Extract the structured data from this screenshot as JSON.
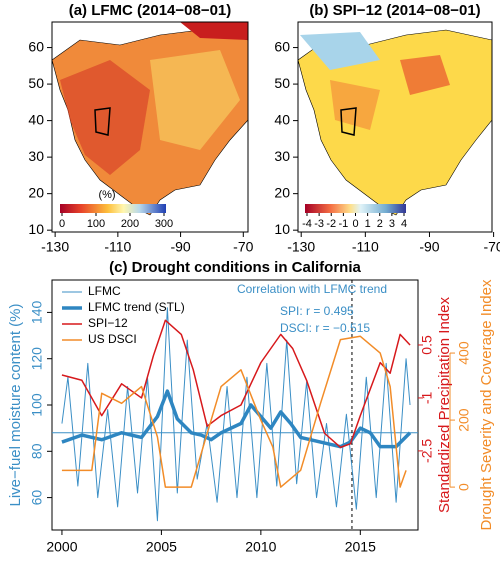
{
  "chart_data": [
    {
      "type": "map",
      "title": "(a) LFMC (2014−08−01)",
      "xlim": [
        -131,
        -68.5
      ],
      "ylim": [
        9.5,
        67
      ],
      "xticks": [
        -130,
        -110,
        -90,
        -70
      ],
      "yticks": [
        10,
        20,
        30,
        40,
        50,
        60
      ],
      "colorbar": {
        "label": "(%)",
        "lim": [
          0,
          300
        ],
        "ticks": [
          0,
          100,
          200,
          300
        ]
      }
    },
    {
      "type": "map",
      "title": "(b) SPI−12 (2014−08−01)",
      "xlim": [
        -131,
        -70.5
      ],
      "ylim": [
        9.5,
        67
      ],
      "xticks": [
        -130,
        -110,
        -90,
        -70
      ],
      "yticks": [
        10,
        20,
        30,
        40,
        50,
        60
      ],
      "colorbar": {
        "lim": [
          -4,
          4
        ],
        "ticks": [
          -4,
          -3,
          -2,
          -1,
          0,
          1,
          2,
          3,
          4
        ]
      }
    },
    {
      "type": "line",
      "title": "(c) Drought conditions in California",
      "ylabel": "Live−fuel moisture content (%)",
      "y2label": "Standardized Precipitation Index",
      "y3label": "Drought Severity and Coverage Index",
      "xlim": [
        1999.5,
        2017.9
      ],
      "xticks": [
        2000,
        2005,
        2010,
        2015
      ],
      "ylim": [
        46,
        154
      ],
      "yticks": [
        60,
        80,
        100,
        120,
        140
      ],
      "y2lim": [
        -4.74,
        2.34
      ],
      "y2ticks": [
        0.5,
        -1,
        -2.5
      ],
      "y3lim": [
        -128,
        618
      ],
      "y3ticks": [
        0,
        200,
        400
      ],
      "hline": 88,
      "vline": 2014.58,
      "annotation": {
        "title": "Correlation with LFMC trend",
        "lines": [
          "SPI:  r = 0.495",
          "DSCI: r = −0.515"
        ]
      },
      "series": [
        {
          "name": "LFMC",
          "color": "#3b8fc6",
          "width": 1,
          "x": [
            2000.0,
            2000.3,
            2000.8,
            2001.3,
            2001.8,
            2002.3,
            2002.8,
            2003.3,
            2003.8,
            2004.3,
            2004.8,
            2005.3,
            2005.8,
            2006.3,
            2006.8,
            2007.3,
            2007.8,
            2008.3,
            2008.8,
            2009.3,
            2009.8,
            2010.3,
            2010.8,
            2011.3,
            2011.8,
            2012.3,
            2012.8,
            2013.3,
            2013.8,
            2014.3,
            2014.8,
            2015.3,
            2015.8,
            2016.3,
            2016.8,
            2017.3,
            2017.5
          ],
          "values": [
            92,
            112,
            65,
            118,
            60,
            98,
            56,
            108,
            62,
            112,
            50,
            142,
            62,
            128,
            68,
            92,
            58,
            108,
            60,
            112,
            60,
            118,
            65,
            128,
            66,
            110,
            60,
            92,
            56,
            96,
            55,
            112,
            60,
            118,
            58,
            120,
            100
          ]
        },
        {
          "name": "LFMC trend (STL)",
          "color": "#2e86c1",
          "width": 3.5,
          "x": [
            2000,
            2001,
            2002,
            2003,
            2004,
            2004.8,
            2005.3,
            2005.8,
            2006.5,
            2007,
            2007.5,
            2008,
            2009,
            2009.5,
            2010,
            2010.5,
            2011,
            2011.5,
            2012,
            2013,
            2014,
            2014.5,
            2015,
            2015.5,
            2016,
            2016.8,
            2017.5
          ],
          "values": [
            84,
            87,
            85,
            88,
            86,
            95,
            106,
            94,
            88,
            87,
            85,
            88,
            92,
            100,
            95,
            90,
            97,
            92,
            86,
            84,
            82,
            84,
            90,
            88,
            82,
            82,
            88
          ]
        },
        {
          "name": "SPI−12",
          "color": "#d7191c",
          "width": 1.5,
          "axis": "y2",
          "x": [
            2000,
            2001,
            2002,
            2003,
            2004,
            2004.6,
            2005.2,
            2006,
            2006.6,
            2007.3,
            2008,
            2009,
            2010,
            2011,
            2011.6,
            2012.3,
            2013.2,
            2014,
            2014.5,
            2015,
            2016,
            2016.5,
            2017,
            2017.5
          ],
          "values": [
            -0.35,
            -0.5,
            -1.5,
            -0.6,
            -1,
            0.2,
            1.2,
            0.8,
            -0.2,
            -1.8,
            -1.5,
            -1.2,
            0,
            0.8,
            0.4,
            -0.5,
            -2,
            -2.4,
            -2.3,
            -1.5,
            0,
            -0.3,
            0.8,
            0.5
          ]
        },
        {
          "name": "US DSCI",
          "color": "#f28c28",
          "width": 1.5,
          "axis": "y3",
          "x": [
            2000,
            2001.5,
            2002,
            2003,
            2004,
            2004.8,
            2005.2,
            2006.5,
            2007,
            2008,
            2009,
            2010,
            2010.6,
            2011,
            2012,
            2013,
            2014,
            2015,
            2016,
            2016.5,
            2017,
            2017.3
          ],
          "values": [
            50,
            50,
            280,
            250,
            300,
            150,
            0,
            0,
            100,
            300,
            350,
            200,
            120,
            0,
            50,
            250,
            440,
            450,
            400,
            300,
            0,
            50
          ]
        }
      ]
    }
  ]
}
